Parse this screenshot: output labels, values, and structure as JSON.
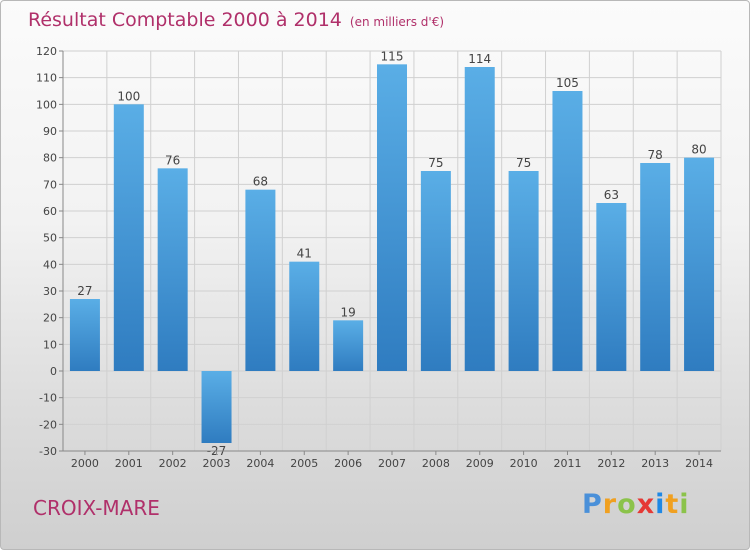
{
  "title": "Résultat Comptable 2000 à 2014",
  "subtitle": "(en milliers d'€)",
  "commune": "CROIX-MARE",
  "logo": {
    "letters": [
      "P",
      "r",
      "o",
      "x",
      "i",
      "t",
      "i"
    ],
    "colors": [
      "#4a90d9",
      "#f0a020",
      "#8bc34a",
      "#e53935",
      "#1e88e5",
      "#f0a020",
      "#8bc34a"
    ]
  },
  "colors": {
    "bar_top": "#5aaee6",
    "bar_bottom": "#2f7cc0",
    "title": "#b0306a"
  },
  "chart_data": {
    "type": "bar",
    "categories": [
      "2000",
      "2001",
      "2002",
      "2003",
      "2004",
      "2005",
      "2006",
      "2007",
      "2008",
      "2009",
      "2010",
      "2011",
      "2012",
      "2013",
      "2014"
    ],
    "values": [
      27,
      100,
      76,
      -27,
      68,
      41,
      19,
      115,
      75,
      114,
      75,
      105,
      63,
      78,
      80
    ],
    "data_labels": [
      "27",
      "100",
      "76",
      "-27",
      "68",
      "41",
      "19",
      "115",
      "75",
      "114",
      "75",
      "105",
      "63",
      "78",
      "80"
    ],
    "ylim": [
      -30,
      120
    ],
    "yticks": [
      -30,
      -20,
      -10,
      0,
      10,
      20,
      30,
      40,
      50,
      60,
      70,
      80,
      90,
      100,
      110,
      120
    ],
    "ytick_labels": [
      "-30",
      "-20",
      "-10",
      "0",
      "10",
      "20",
      "30",
      "40",
      "50",
      "60",
      "70",
      "80",
      "90",
      "100",
      "110",
      "120"
    ],
    "xlabel": "",
    "ylabel": "",
    "grid": true
  }
}
